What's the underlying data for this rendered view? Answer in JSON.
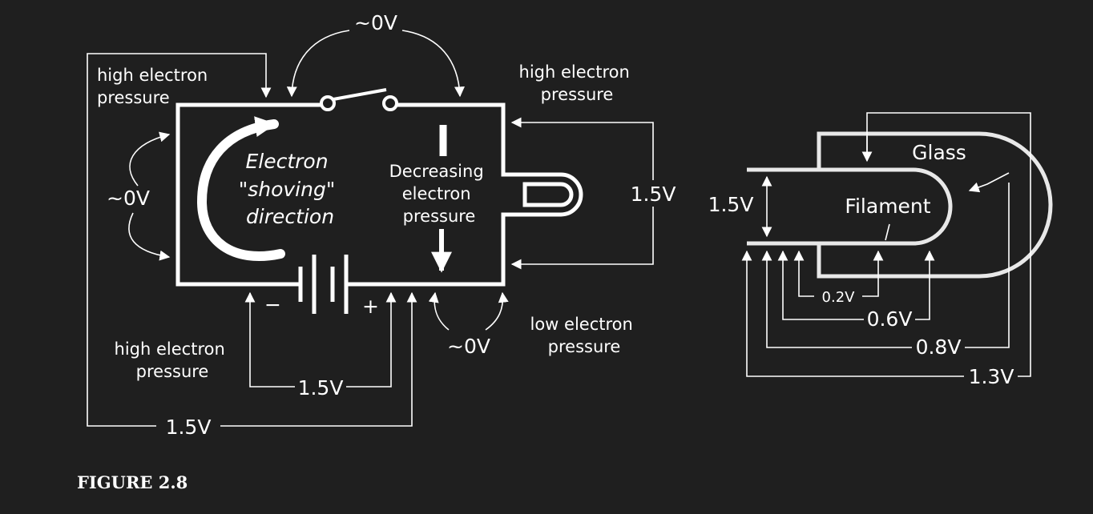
{
  "figure": {
    "caption": "FIGURE 2.8"
  },
  "circuit": {
    "switch_voltage": "~0V",
    "left_voltage": "~0V",
    "battery_voltage": "1.5V",
    "outer_voltage": "1.5V",
    "lamp_voltage": "1.5V",
    "bottom_voltage": "~0V",
    "minus_sign": "−",
    "plus_sign": "+",
    "top_left_pressure": [
      "high electron",
      "pressure"
    ],
    "top_right_pressure": [
      "high electron",
      "pressure"
    ],
    "bottom_left_pressure": [
      "high electron",
      "pressure"
    ],
    "bottom_right_pressure": [
      "low electron",
      "pressure"
    ],
    "shoving": [
      "Electron",
      "\"shoving\"",
      "direction"
    ],
    "decreasing": [
      "Decreasing",
      "electron",
      "pressure"
    ]
  },
  "bulb": {
    "glass_label": "Glass",
    "filament_label": "Filament",
    "left_voltage": "1.5V",
    "taps": [
      "0.2V",
      "0.6V",
      "0.8V",
      "1.3V"
    ]
  }
}
